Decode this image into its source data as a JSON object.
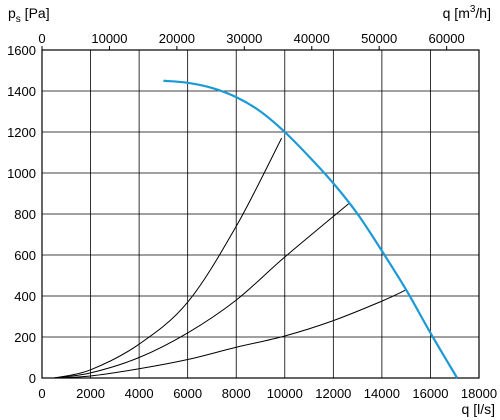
{
  "chart_data": {
    "type": "line",
    "y_axis": {
      "label_main": "p",
      "label_sub": "s",
      "label_unit": " [Pa]",
      "range": [
        0,
        1600
      ],
      "ticks": [
        0,
        200,
        400,
        600,
        800,
        1000,
        1200,
        1400,
        1600
      ]
    },
    "x_axis_bottom": {
      "label_main": "q [l/s]",
      "range": [
        0,
        18000
      ],
      "ticks": [
        0,
        2000,
        4000,
        6000,
        8000,
        10000,
        12000,
        14000,
        16000,
        18000
      ]
    },
    "x_axis_top": {
      "label_main": "q [m",
      "label_sup": "3",
      "label_end": "/h]",
      "range": [
        0,
        64800
      ],
      "ticks": [
        0,
        10000,
        20000,
        30000,
        40000,
        50000,
        60000
      ]
    },
    "grid": true,
    "series": [
      {
        "role": "fan-curve",
        "color": "#1b9ad6",
        "x": [
          5000,
          6000,
          7000,
          8000,
          9000,
          10000,
          11000,
          12000,
          13000,
          14000,
          15000,
          16000,
          17100
        ],
        "y": [
          1450,
          1440,
          1415,
          1370,
          1300,
          1200,
          1080,
          950,
          800,
          620,
          430,
          220,
          0
        ]
      },
      {
        "role": "system-curve",
        "color": "#000000",
        "x": [
          500,
          2000,
          4000,
          6000,
          8000,
          9870
        ],
        "y": [
          0,
          40,
          165,
          370,
          740,
          1170
        ]
      },
      {
        "role": "system-curve",
        "color": "#000000",
        "x": [
          500,
          2000,
          4000,
          6000,
          8000,
          10000,
          12630
        ],
        "y": [
          0,
          25,
          100,
          220,
          380,
          590,
          850
        ]
      },
      {
        "role": "system-curve",
        "color": "#000000",
        "x": [
          500,
          2000,
          4000,
          6000,
          8000,
          10000,
          12000,
          14000,
          15000
        ],
        "y": [
          0,
          10,
          45,
          90,
          150,
          205,
          280,
          375,
          430
        ]
      }
    ]
  }
}
